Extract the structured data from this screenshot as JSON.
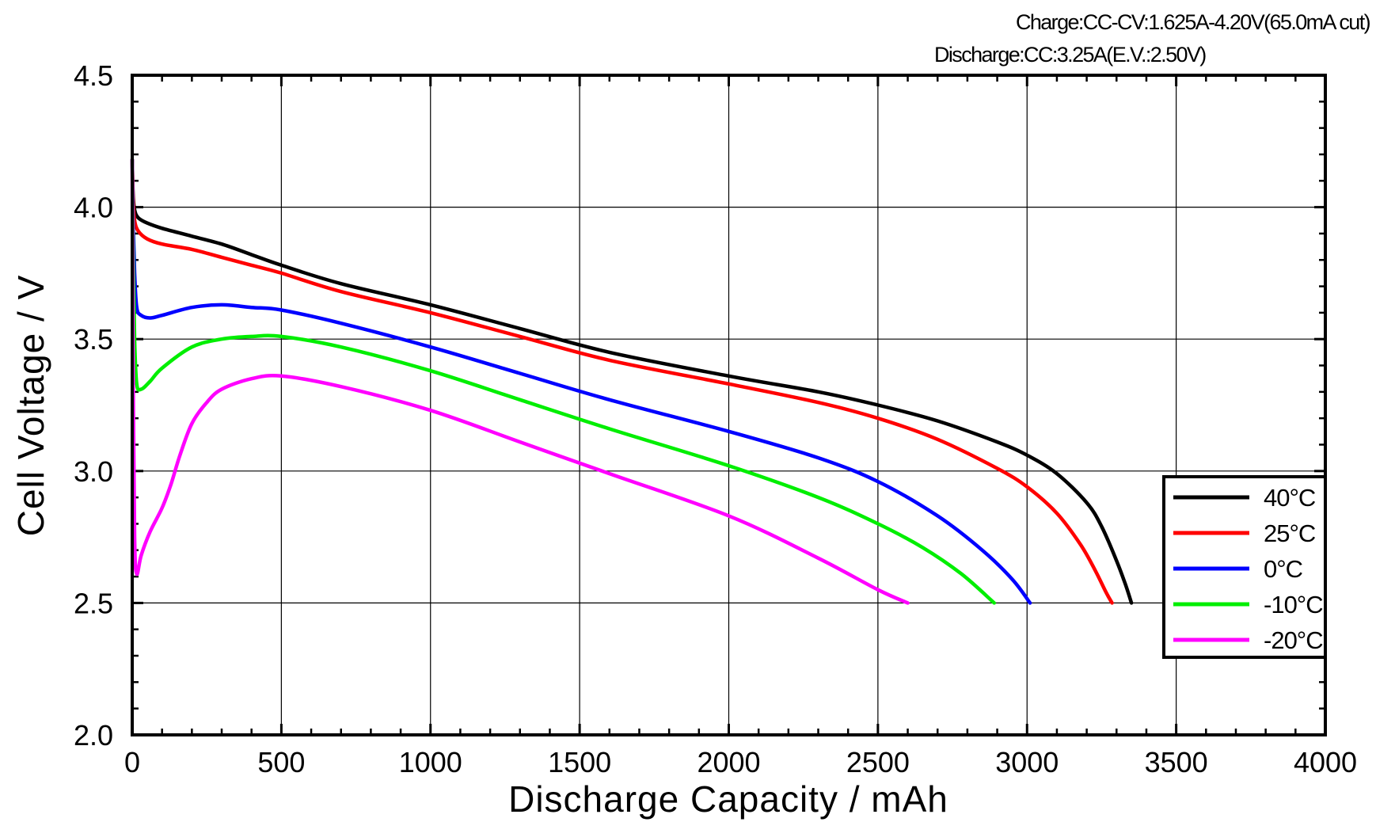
{
  "chart_data": {
    "type": "line",
    "annotations": [
      "Charge:CC-CV:1.625A-4.20V(65.0mA cut)",
      "Discharge:CC:3.25A(E.V.:2.50V)"
    ],
    "title": "",
    "xlabel": "Discharge Capacity / mAh",
    "ylabel": "Cell Voltage / V",
    "xlim": [
      0,
      4000
    ],
    "ylim": [
      2.0,
      4.5
    ],
    "xticks": [
      0,
      500,
      1000,
      1500,
      2000,
      2500,
      3000,
      3500,
      4000
    ],
    "yticks": [
      2.0,
      2.5,
      3.0,
      3.5,
      4.0,
      4.5
    ],
    "xtick_labels": [
      "0",
      "500",
      "1000",
      "1500",
      "2000",
      "2500",
      "3000",
      "3500",
      "4000"
    ],
    "ytick_labels": [
      "2.0",
      "2.5",
      "3.0",
      "3.5",
      "4.0",
      "4.5"
    ],
    "grid": true,
    "legend_position": "right",
    "series": [
      {
        "name": "40°C",
        "color": "#000000",
        "x": [
          0,
          3,
          8,
          20,
          50,
          100,
          200,
          300,
          400,
          500,
          700,
          1000,
          1300,
          1600,
          2000,
          2300,
          2500,
          2700,
          2900,
          3000,
          3100,
          3200,
          3250,
          3300,
          3330,
          3350
        ],
        "y": [
          4.18,
          4.05,
          3.99,
          3.96,
          3.94,
          3.92,
          3.89,
          3.86,
          3.82,
          3.78,
          3.71,
          3.63,
          3.54,
          3.45,
          3.36,
          3.3,
          3.25,
          3.19,
          3.11,
          3.06,
          2.99,
          2.88,
          2.79,
          2.66,
          2.57,
          2.5
        ]
      },
      {
        "name": "25°C",
        "color": "#ff0000",
        "x": [
          0,
          3,
          8,
          20,
          50,
          100,
          200,
          300,
          400,
          500,
          700,
          1000,
          1300,
          1600,
          2000,
          2300,
          2500,
          2700,
          2900,
          3000,
          3100,
          3180,
          3230,
          3265,
          3285
        ],
        "y": [
          4.18,
          4.03,
          3.95,
          3.91,
          3.88,
          3.86,
          3.84,
          3.81,
          3.78,
          3.75,
          3.68,
          3.6,
          3.51,
          3.42,
          3.33,
          3.26,
          3.2,
          3.12,
          3.01,
          2.94,
          2.84,
          2.72,
          2.62,
          2.54,
          2.5
        ]
      },
      {
        "name": "0°C",
        "color": "#0000ff",
        "x": [
          0,
          3,
          8,
          15,
          30,
          60,
          100,
          200,
          300,
          400,
          500,
          700,
          1000,
          1300,
          1600,
          2000,
          2300,
          2500,
          2700,
          2850,
          2950,
          3010
        ],
        "y": [
          4.18,
          3.95,
          3.75,
          3.62,
          3.59,
          3.58,
          3.59,
          3.62,
          3.63,
          3.62,
          3.61,
          3.56,
          3.47,
          3.37,
          3.27,
          3.15,
          3.05,
          2.96,
          2.83,
          2.7,
          2.59,
          2.5
        ]
      },
      {
        "name": "-10°C",
        "color": "#00ee00",
        "x": [
          0,
          3,
          8,
          15,
          30,
          60,
          100,
          200,
          300,
          400,
          500,
          700,
          1000,
          1300,
          1600,
          2000,
          2300,
          2500,
          2650,
          2780,
          2890
        ],
        "y": [
          4.18,
          3.85,
          3.5,
          3.33,
          3.31,
          3.34,
          3.39,
          3.47,
          3.5,
          3.51,
          3.51,
          3.47,
          3.38,
          3.27,
          3.16,
          3.02,
          2.9,
          2.8,
          2.71,
          2.61,
          2.5
        ]
      },
      {
        "name": "-20°C",
        "color": "#ff00ff",
        "x": [
          0,
          3,
          8,
          15,
          30,
          60,
          100,
          130,
          160,
          200,
          250,
          300,
          400,
          500,
          700,
          1000,
          1300,
          1600,
          2000,
          2300,
          2500,
          2600
        ],
        "y": [
          4.18,
          3.4,
          2.75,
          2.61,
          2.68,
          2.77,
          2.86,
          2.95,
          3.06,
          3.18,
          3.26,
          3.31,
          3.35,
          3.36,
          3.32,
          3.23,
          3.11,
          2.99,
          2.83,
          2.67,
          2.55,
          2.5
        ]
      }
    ]
  }
}
